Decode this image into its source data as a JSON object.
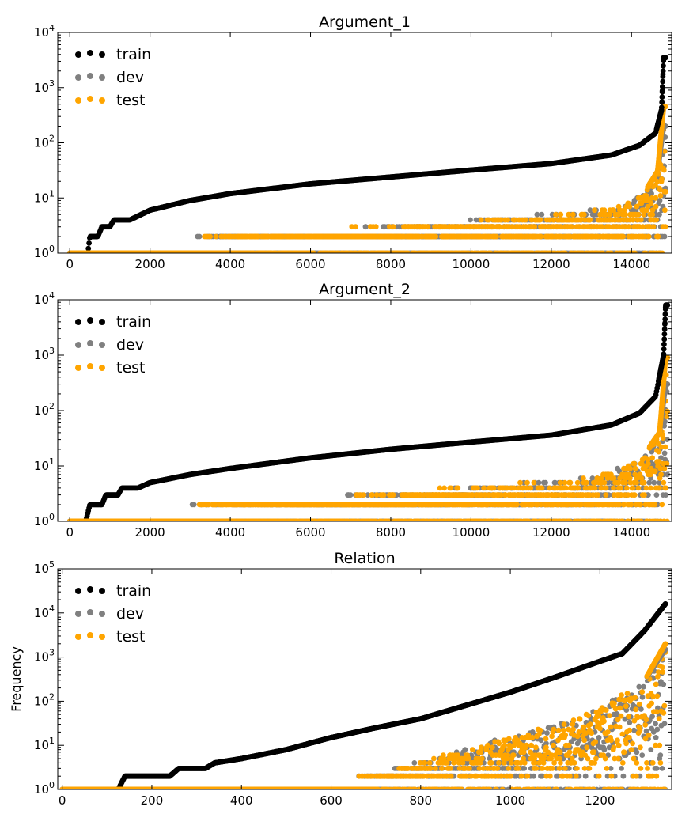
{
  "colors": {
    "train": "#000000",
    "dev": "#808080",
    "test": "#ffa500",
    "axis": "#000000"
  },
  "chart_data": [
    {
      "type": "scatter",
      "title": "Argument_1",
      "xlabel": "",
      "ylabel": "",
      "xlim": [
        -300,
        15000
      ],
      "yscale": "log",
      "ylim": [
        1,
        10000
      ],
      "xticks": [
        0,
        2000,
        4000,
        6000,
        8000,
        10000,
        12000,
        14000
      ],
      "xtick_labels": [
        "0",
        "2000",
        "4000",
        "6000",
        "8000",
        "10000",
        "12000",
        "14000"
      ],
      "yticks": [
        1,
        10,
        100,
        1000,
        10000
      ],
      "ytick_labels": [
        {
          "base": "10",
          "exp": "0"
        },
        {
          "base": "10",
          "exp": "1"
        },
        {
          "base": "10",
          "exp": "2"
        },
        {
          "base": "10",
          "exp": "3"
        },
        {
          "base": "10",
          "exp": "4"
        }
      ],
      "legend": {
        "placement": "top-left",
        "entries": [
          "train",
          "dev",
          "test"
        ]
      },
      "n": 14850,
      "series": [
        {
          "name": "train",
          "curve": [
            [
              0,
              1
            ],
            [
              450,
              1
            ],
            [
              500,
              2
            ],
            [
              700,
              2
            ],
            [
              800,
              3
            ],
            [
              1000,
              3
            ],
            [
              1100,
              4
            ],
            [
              1500,
              4
            ],
            [
              2000,
              6
            ],
            [
              3000,
              9
            ],
            [
              4000,
              12
            ],
            [
              6000,
              18
            ],
            [
              8000,
              24
            ],
            [
              10000,
              32
            ],
            [
              12000,
              42
            ],
            [
              13500,
              60
            ],
            [
              14200,
              90
            ],
            [
              14600,
              150
            ],
            [
              14750,
              400
            ],
            [
              14800,
              3500
            ]
          ]
        },
        {
          "name": "dev",
          "curve": [
            [
              0,
              1
            ],
            [
              13500,
              6
            ],
            [
              14300,
              12
            ],
            [
              14650,
              30
            ],
            [
              14800,
              200
            ]
          ]
        },
        {
          "name": "test",
          "curve": [
            [
              0,
              1
            ],
            [
              13500,
              6
            ],
            [
              14300,
              12
            ],
            [
              14650,
              30
            ],
            [
              14800,
              450
            ]
          ]
        }
      ]
    },
    {
      "type": "scatter",
      "title": "Argument_2",
      "xlabel": "",
      "ylabel": "",
      "xlim": [
        -300,
        15000
      ],
      "yscale": "log",
      "ylim": [
        1,
        10000
      ],
      "xticks": [
        0,
        2000,
        4000,
        6000,
        8000,
        10000,
        12000,
        14000
      ],
      "xtick_labels": [
        "0",
        "2000",
        "4000",
        "6000",
        "8000",
        "10000",
        "12000",
        "14000"
      ],
      "yticks": [
        1,
        10,
        100,
        1000,
        10000
      ],
      "ytick_labels": [
        {
          "base": "10",
          "exp": "0"
        },
        {
          "base": "10",
          "exp": "1"
        },
        {
          "base": "10",
          "exp": "2"
        },
        {
          "base": "10",
          "exp": "3"
        },
        {
          "base": "10",
          "exp": "4"
        }
      ],
      "legend": {
        "placement": "top-left",
        "entries": [
          "train",
          "dev",
          "test"
        ]
      },
      "n": 14900,
      "series": [
        {
          "name": "train",
          "curve": [
            [
              0,
              1
            ],
            [
              400,
              1
            ],
            [
              500,
              2
            ],
            [
              800,
              2
            ],
            [
              900,
              3
            ],
            [
              1200,
              3
            ],
            [
              1300,
              4
            ],
            [
              1700,
              4
            ],
            [
              2000,
              5
            ],
            [
              3000,
              7
            ],
            [
              4000,
              9
            ],
            [
              6000,
              14
            ],
            [
              8000,
              20
            ],
            [
              10000,
              27
            ],
            [
              12000,
              36
            ],
            [
              13500,
              55
            ],
            [
              14200,
              90
            ],
            [
              14600,
              180
            ],
            [
              14800,
              1000
            ],
            [
              14850,
              8000
            ]
          ]
        },
        {
          "name": "dev",
          "curve": [
            [
              0,
              1
            ],
            [
              13000,
              6
            ],
            [
              14200,
              12
            ],
            [
              14700,
              40
            ],
            [
              14850,
              300
            ]
          ]
        },
        {
          "name": "test",
          "curve": [
            [
              0,
              1
            ],
            [
              13000,
              6
            ],
            [
              14200,
              12
            ],
            [
              14700,
              40
            ],
            [
              14850,
              900
            ]
          ]
        }
      ]
    },
    {
      "type": "scatter",
      "title": "Relation",
      "xlabel": "",
      "ylabel": "Frequency",
      "xlim": [
        -10,
        1360
      ],
      "yscale": "log",
      "ylim": [
        1,
        100000
      ],
      "xticks": [
        0,
        200,
        400,
        600,
        800,
        1000,
        1200
      ],
      "xtick_labels": [
        "0",
        "200",
        "400",
        "600",
        "800",
        "1000",
        "1200"
      ],
      "yticks": [
        1,
        10,
        100,
        1000,
        10000,
        100000
      ],
      "ytick_labels": [
        {
          "base": "10",
          "exp": "0"
        },
        {
          "base": "10",
          "exp": "1"
        },
        {
          "base": "10",
          "exp": "2"
        },
        {
          "base": "10",
          "exp": "3"
        },
        {
          "base": "10",
          "exp": "4"
        },
        {
          "base": "10",
          "exp": "5"
        }
      ],
      "legend": {
        "placement": "top-left",
        "entries": [
          "train",
          "dev",
          "test"
        ]
      },
      "n": 1346,
      "series": [
        {
          "name": "train",
          "curve": [
            [
              0,
              1
            ],
            [
              125,
              1
            ],
            [
              140,
              2
            ],
            [
              240,
              2
            ],
            [
              260,
              3
            ],
            [
              320,
              3
            ],
            [
              340,
              4
            ],
            [
              400,
              5
            ],
            [
              500,
              8
            ],
            [
              600,
              15
            ],
            [
              700,
              25
            ],
            [
              800,
              40
            ],
            [
              900,
              80
            ],
            [
              1000,
              160
            ],
            [
              1100,
              350
            ],
            [
              1200,
              800
            ],
            [
              1250,
              1200
            ],
            [
              1300,
              4000
            ],
            [
              1346,
              16000
            ]
          ]
        },
        {
          "name": "dev",
          "curve": [
            [
              0,
              1
            ],
            [
              600,
              1
            ],
            [
              700,
              2
            ],
            [
              800,
              4
            ],
            [
              900,
              8
            ],
            [
              1000,
              16
            ],
            [
              1100,
              30
            ],
            [
              1200,
              70
            ],
            [
              1300,
              300
            ],
            [
              1346,
              1500
            ]
          ]
        },
        {
          "name": "test",
          "curve": [
            [
              0,
              1
            ],
            [
              600,
              1
            ],
            [
              700,
              2
            ],
            [
              800,
              4
            ],
            [
              900,
              8
            ],
            [
              1000,
              16
            ],
            [
              1100,
              30
            ],
            [
              1200,
              70
            ],
            [
              1300,
              300
            ],
            [
              1346,
              2000
            ]
          ]
        }
      ]
    }
  ]
}
